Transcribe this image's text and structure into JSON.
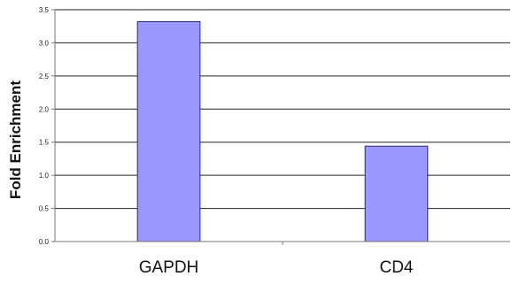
{
  "chart_data": {
    "type": "bar",
    "title": "",
    "xlabel": "",
    "ylabel": "Fold Enrichment",
    "categories": [
      "GAPDH",
      "CD4"
    ],
    "values": [
      3.32,
      1.44
    ],
    "ylim": [
      0,
      3.5
    ],
    "yticks": [
      "0.0",
      "0.5",
      "1.0",
      "1.5",
      "2.0",
      "2.5",
      "3.0",
      "3.5"
    ],
    "grid": true,
    "legend": "none",
    "colors": {
      "bar_fill": "#9999ff",
      "bar_stroke": "#2a2a66",
      "grid": "#222222",
      "axis": "#777777"
    }
  }
}
